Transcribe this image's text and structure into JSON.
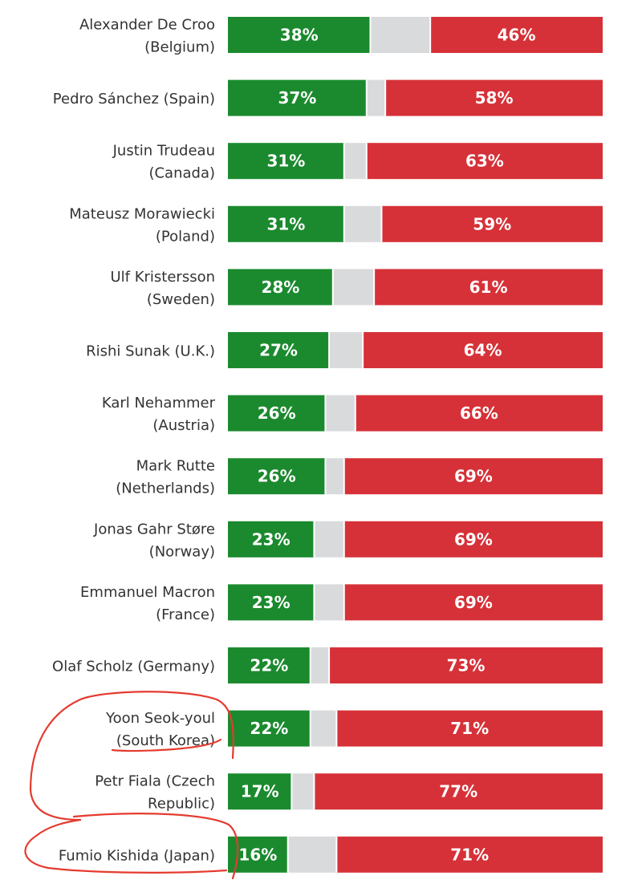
{
  "chart_data": {
    "type": "bar",
    "stacked": true,
    "orientation": "horizontal",
    "colors": {
      "approve": "#1b8a2e",
      "unsure": "#d9dadc",
      "disapprove": "#d63138"
    },
    "rows": [
      {
        "name": "Alexander De Croo",
        "country": "(Belgium)",
        "approve": 38,
        "approve_label": "38%",
        "disapprove": 46,
        "disapprove_label": "46%"
      },
      {
        "name": "Pedro Sánchez (Spain)",
        "country": "",
        "approve": 37,
        "approve_label": "37%",
        "disapprove": 58,
        "disapprove_label": "58%"
      },
      {
        "name": "Justin Trudeau",
        "country": "(Canada)",
        "approve": 31,
        "approve_label": "31%",
        "disapprove": 63,
        "disapprove_label": "63%"
      },
      {
        "name": "Mateusz Morawiecki",
        "country": "(Poland)",
        "approve": 31,
        "approve_label": "31%",
        "disapprove": 59,
        "disapprove_label": "59%"
      },
      {
        "name": "Ulf Kristersson",
        "country": "(Sweden)",
        "approve": 28,
        "approve_label": "28%",
        "disapprove": 61,
        "disapprove_label": "61%"
      },
      {
        "name": "Rishi Sunak (U.K.)",
        "country": "",
        "approve": 27,
        "approve_label": "27%",
        "disapprove": 64,
        "disapprove_label": "64%"
      },
      {
        "name": "Karl Nehammer",
        "country": "(Austria)",
        "approve": 26,
        "approve_label": "26%",
        "disapprove": 66,
        "disapprove_label": "66%"
      },
      {
        "name": "Mark Rutte",
        "country": "(Netherlands)",
        "approve": 26,
        "approve_label": "26%",
        "disapprove": 69,
        "disapprove_label": "69%"
      },
      {
        "name": "Jonas Gahr Støre",
        "country": "(Norway)",
        "approve": 23,
        "approve_label": "23%",
        "disapprove": 69,
        "disapprove_label": "69%"
      },
      {
        "name": "Emmanuel Macron",
        "country": "(France)",
        "approve": 23,
        "approve_label": "23%",
        "disapprove": 69,
        "disapprove_label": "69%"
      },
      {
        "name": "Olaf Scholz (Germany)",
        "country": "",
        "approve": 22,
        "approve_label": "22%",
        "disapprove": 73,
        "disapprove_label": "73%"
      },
      {
        "name": "Yoon Seok-youl",
        "country": "(South Korea)",
        "approve": 22,
        "approve_label": "22%",
        "disapprove": 71,
        "disapprove_label": "71%"
      },
      {
        "name": "Petr Fiala (Czech",
        "country": "Republic)",
        "approve": 17,
        "approve_label": "17%",
        "disapprove": 77,
        "disapprove_label": "77%"
      },
      {
        "name": "Fumio Kishida (Japan)",
        "country": "",
        "approve": 16,
        "approve_label": "16%",
        "disapprove": 71,
        "disapprove_label": "71%"
      }
    ],
    "xlim": [
      0,
      100
    ],
    "annotation": "hand-drawn red circles around Yoon Seok-youl (South Korea) and Fumio Kishida (Japan)"
  }
}
